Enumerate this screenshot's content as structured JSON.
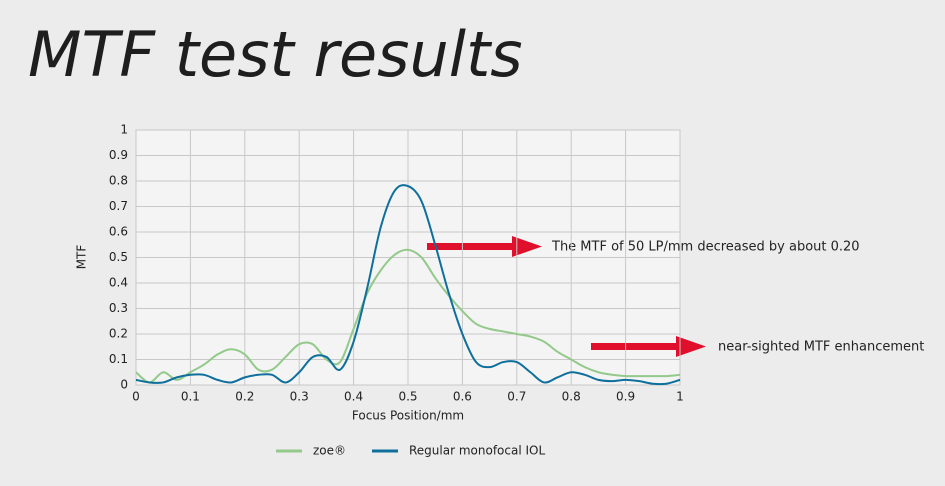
{
  "chart_data": {
    "type": "line",
    "title": "MTF test results",
    "x_label": "Focus Position/mm",
    "y_label": "MTF",
    "annotations": [
      "The MTF of 50 LP/mm decreased by about 0.20",
      "near-sighted MTF enhancement"
    ],
    "x": [
      0,
      0.025,
      0.05,
      0.075,
      0.1,
      0.125,
      0.15,
      0.175,
      0.2,
      0.225,
      0.25,
      0.275,
      0.3,
      0.325,
      0.35,
      0.375,
      0.4,
      0.425,
      0.45,
      0.475,
      0.5,
      0.525,
      0.55,
      0.575,
      0.6,
      0.625,
      0.65,
      0.675,
      0.7,
      0.725,
      0.75,
      0.775,
      0.8,
      0.825,
      0.85,
      0.875,
      0.9,
      0.925,
      0.95,
      0.975,
      1
    ],
    "series": [
      {
        "name": "zoe®",
        "color": "#93c98a",
        "values": [
          0.05,
          0.01,
          0.05,
          0.02,
          0.05,
          0.08,
          0.12,
          0.14,
          0.12,
          0.06,
          0.06,
          0.11,
          0.16,
          0.16,
          0.1,
          0.09,
          0.22,
          0.36,
          0.45,
          0.51,
          0.53,
          0.5,
          0.42,
          0.35,
          0.29,
          0.24,
          0.22,
          0.21,
          0.2,
          0.19,
          0.17,
          0.13,
          0.1,
          0.07,
          0.05,
          0.04,
          0.035,
          0.035,
          0.035,
          0.035,
          0.04
        ]
      },
      {
        "name": "Regular monofocal IOL",
        "color": "#0f6f9c",
        "values": [
          0.02,
          0.01,
          0.01,
          0.03,
          0.04,
          0.04,
          0.02,
          0.01,
          0.03,
          0.04,
          0.04,
          0.01,
          0.05,
          0.11,
          0.11,
          0.06,
          0.17,
          0.38,
          0.62,
          0.76,
          0.78,
          0.72,
          0.55,
          0.36,
          0.2,
          0.09,
          0.07,
          0.09,
          0.09,
          0.05,
          0.01,
          0.03,
          0.05,
          0.04,
          0.02,
          0.015,
          0.02,
          0.015,
          0.005,
          0.005,
          0.02
        ]
      }
    ],
    "xlim": [
      0,
      1
    ],
    "ylim": [
      0,
      1
    ],
    "xticks": [
      0,
      0.1,
      0.2,
      0.3,
      0.4,
      0.5,
      0.6,
      0.7,
      0.8,
      0.9,
      1
    ],
    "yticks": [
      0,
      0.1,
      0.2,
      0.3,
      0.4,
      0.5,
      0.6,
      0.7,
      0.8,
      0.9,
      1
    ],
    "grid": true
  }
}
